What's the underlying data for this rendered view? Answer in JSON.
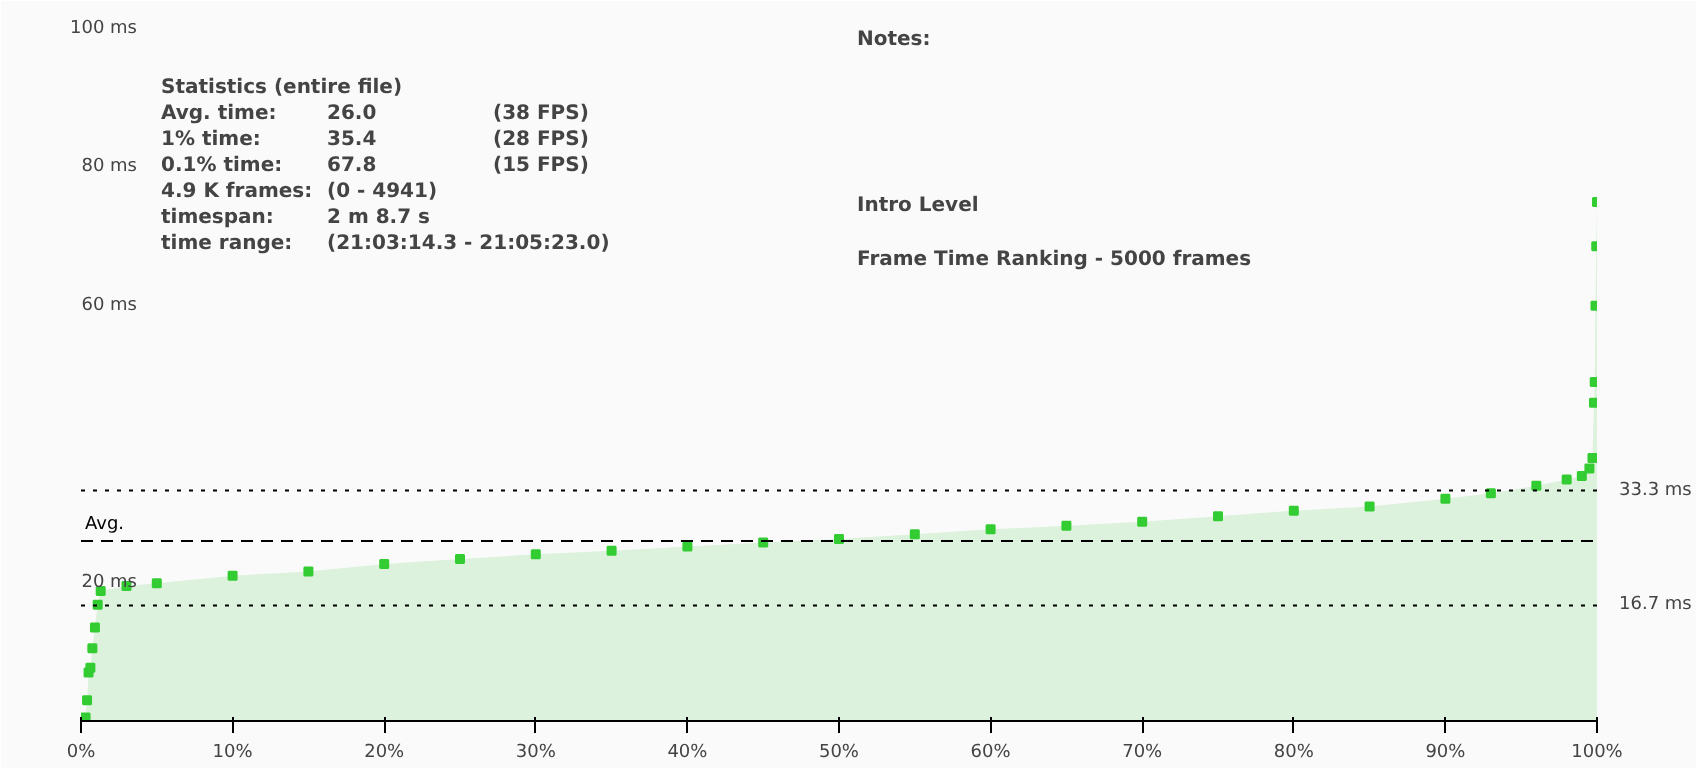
{
  "chart_data": {
    "type": "area",
    "marker": "square",
    "grid": false,
    "x": [
      0.3,
      0.4,
      0.5,
      0.62,
      0.75,
      0.92,
      1.1,
      1.3,
      3,
      5,
      10,
      15,
      20,
      25,
      30,
      35,
      40,
      45,
      50,
      55,
      60,
      65,
      70,
      75,
      80,
      85,
      90,
      93,
      96,
      98,
      99,
      99.5,
      99.7,
      99.8,
      99.85,
      99.9,
      99.95,
      100
    ],
    "series": [
      {
        "color": "#33cc33",
        "values": [
          0.5,
          3,
          7,
          7.7,
          10.5,
          13.5,
          16.8,
          18.8,
          19.5,
          19.9,
          21,
          21.6,
          22.7,
          23.4,
          24.1,
          24.6,
          25.2,
          25.8,
          26.3,
          27,
          27.7,
          28.2,
          28.8,
          29.6,
          30.4,
          31,
          32.1,
          32.9,
          34,
          34.9,
          35.4,
          36.5,
          38,
          46,
          49,
          60,
          68.6,
          75
        ]
      }
    ],
    "xlim": [
      0,
      100
    ],
    "xticks": [
      {
        "value": 0,
        "label": "0%"
      },
      {
        "value": 10,
        "label": "10%"
      },
      {
        "value": 20,
        "label": "20%"
      },
      {
        "value": 30,
        "label": "30%"
      },
      {
        "value": 40,
        "label": "40%"
      },
      {
        "value": 50,
        "label": "50%"
      },
      {
        "value": 60,
        "label": "60%"
      },
      {
        "value": 70,
        "label": "70%"
      },
      {
        "value": 80,
        "label": "80%"
      },
      {
        "value": 90,
        "label": "90%"
      },
      {
        "value": 100,
        "label": "100%"
      }
    ],
    "ylim": [
      0,
      100
    ],
    "yticks": [
      {
        "value": 20,
        "label": "20 ms"
      },
      {
        "value": 60,
        "label": "60 ms"
      },
      {
        "value": 80,
        "label": "80 ms"
      },
      {
        "value": 100,
        "label": "100 ms"
      }
    ],
    "ref_lines": [
      {
        "axis": "y",
        "value": 33.3,
        "label": "33.3 ms",
        "line_style": "dotted",
        "color": "#000000"
      },
      {
        "axis": "y",
        "value": 26.0,
        "label": "Avg.",
        "line_style": "dashed",
        "color": "#000000"
      },
      {
        "axis": "y",
        "value": 16.7,
        "label": "16.7 ms",
        "line_style": "dotted",
        "color": "#000000"
      }
    ],
    "annotations": [
      "Statistics (entire file)",
      "Avg. time:",
      "26.0",
      "(38 FPS)",
      "1% time:",
      "35.4",
      "(28 FPS)",
      "0.1% time:",
      "67.8",
      "(15 FPS)",
      "4.9 K frames:",
      "(0 - 4941)",
      "timespan:",
      "2 m 8.7 s",
      "time range:",
      "(21:03:14.3 - 21:05:23.0)",
      "Notes:",
      "Intro Level",
      "Frame Time Ranking - 5000 frames"
    ]
  }
}
